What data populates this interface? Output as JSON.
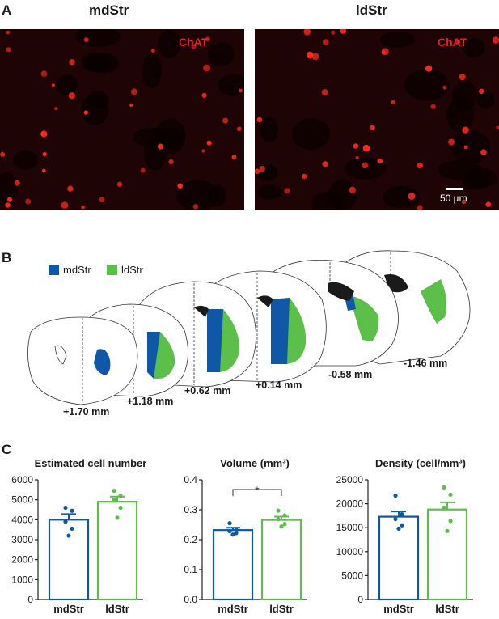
{
  "panels": {
    "a": "A",
    "b": "B",
    "c": "C"
  },
  "panel_a": {
    "left_title": "mdStr",
    "right_title": "ldStr",
    "stain_label": "ChAT",
    "scale_bar": "50 µm"
  },
  "panel_b": {
    "legend": [
      {
        "label": "mdStr",
        "color": "#0f58a8"
      },
      {
        "label": "ldStr",
        "color": "#5cbf4a"
      }
    ],
    "sections": [
      "+1.70 mm",
      "+1.18 mm",
      "+0.62 mm",
      "+0.14 mm",
      "-0.58 mm",
      "-1.46 mm"
    ]
  },
  "colors": {
    "mdStr": "#0f58a8",
    "ldStr": "#5cbf4a",
    "chat": "#e4231c"
  },
  "chart_data": [
    {
      "type": "bar",
      "title": "Estimated cell number",
      "categories": [
        "mdStr",
        "ldStr"
      ],
      "values": [
        4000,
        4900
      ],
      "sem": [
        280,
        260
      ],
      "points": [
        [
          3200,
          3550,
          3900,
          4450,
          4600
        ],
        [
          4100,
          4600,
          5000,
          5200,
          5450
        ]
      ],
      "ylim": [
        0,
        6000
      ],
      "yticks": [
        0,
        1000,
        2000,
        3000,
        4000,
        5000,
        6000
      ],
      "ytick_labels": [
        "0",
        "1000",
        "2000",
        "3000",
        "4000",
        "5000",
        "6000"
      ]
    },
    {
      "type": "bar",
      "title": "Volume (mm³)",
      "categories": [
        "mdStr",
        "ldStr"
      ],
      "values": [
        0.232,
        0.266
      ],
      "sem": [
        0.008,
        0.011
      ],
      "points": [
        [
          0.217,
          0.222,
          0.228,
          0.232,
          0.255
        ],
        [
          0.244,
          0.252,
          0.268,
          0.281,
          0.297
        ]
      ],
      "ylim": [
        0,
        0.4
      ],
      "yticks": [
        0,
        0.1,
        0.2,
        0.3,
        0.4
      ],
      "ytick_labels": [
        "0.0",
        "0.1",
        "0.2",
        "0.3",
        "0.4"
      ],
      "significance": "*"
    },
    {
      "type": "bar",
      "title": "Density (cell/mm³)",
      "categories": [
        "mdStr",
        "ldStr"
      ],
      "values": [
        17300,
        18800
      ],
      "sem": [
        1100,
        1500
      ],
      "points": [
        [
          14800,
          15500,
          16800,
          17800,
          21700
        ],
        [
          14300,
          16400,
          19200,
          21900,
          23400
        ]
      ],
      "ylim": [
        0,
        25000
      ],
      "yticks": [
        0,
        5000,
        10000,
        15000,
        20000,
        25000
      ],
      "ytick_labels": [
        "0",
        "5000",
        "10000",
        "15000",
        "20000",
        "25000"
      ]
    }
  ]
}
